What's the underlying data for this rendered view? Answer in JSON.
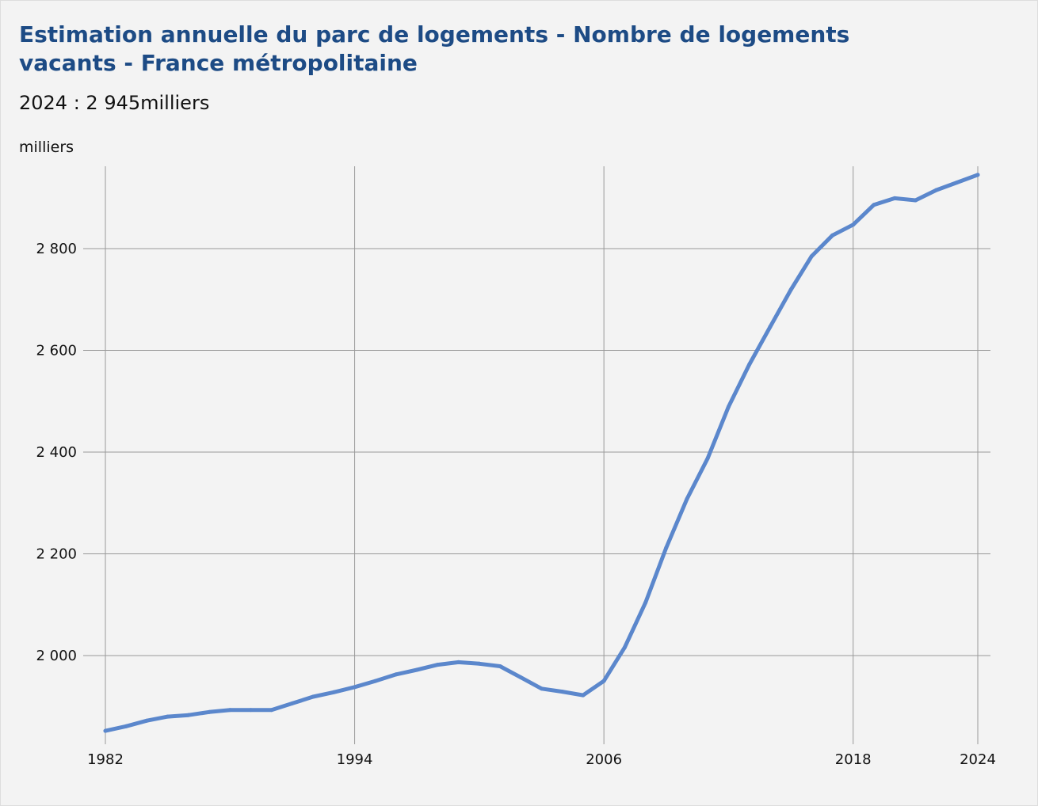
{
  "chart_data": {
    "type": "line",
    "title": "Estimation annuelle du parc de logements - Nombre de logements vacants - France métropolitaine",
    "subtitle": "2024 : 2 945milliers",
    "ylabel": "milliers",
    "xlabel": "",
    "x_ticks": [
      1982,
      1994,
      2006,
      2018,
      2024
    ],
    "y_ticks": [
      2000,
      2200,
      2400,
      2600,
      2800
    ],
    "y_tick_labels": [
      "2 000",
      "2 200",
      "2 400",
      "2 600",
      "2 800"
    ],
    "x_tick_labels": [
      "1982",
      "1994",
      "2006",
      "2018",
      "2024"
    ],
    "xlim": [
      1982,
      2024
    ],
    "ylim": [
      1840,
      2960
    ],
    "grid": true,
    "line_color": "#5b87cc",
    "title_color": "#1d4b85",
    "series": [
      {
        "x": [
          1982,
          1983,
          1984,
          1985,
          1986,
          1987,
          1988,
          1989,
          1990,
          1991,
          1992,
          1993,
          1994,
          1995,
          1996,
          1997,
          1998,
          1999,
          2000,
          2001,
          2002,
          2003,
          2004,
          2005,
          2006,
          2007,
          2008,
          2009,
          2010,
          2011,
          2012,
          2013,
          2014,
          2015,
          2016,
          2017,
          2018,
          2019,
          2020,
          2021,
          2022,
          2023,
          2024
        ],
        "values": [
          1852,
          1861,
          1872,
          1880,
          1883,
          1889,
          1893,
          1893,
          1893,
          1906,
          1919,
          1928,
          1938,
          1950,
          1963,
          1972,
          1982,
          1987,
          1984,
          1979,
          1957,
          1935,
          1929,
          1922,
          1950,
          2016,
          2104,
          2212,
          2308,
          2388,
          2489,
          2572,
          2646,
          2719,
          2785,
          2826,
          2847,
          2886,
          2899,
          2895,
          2915,
          2930,
          2945
        ]
      }
    ]
  }
}
